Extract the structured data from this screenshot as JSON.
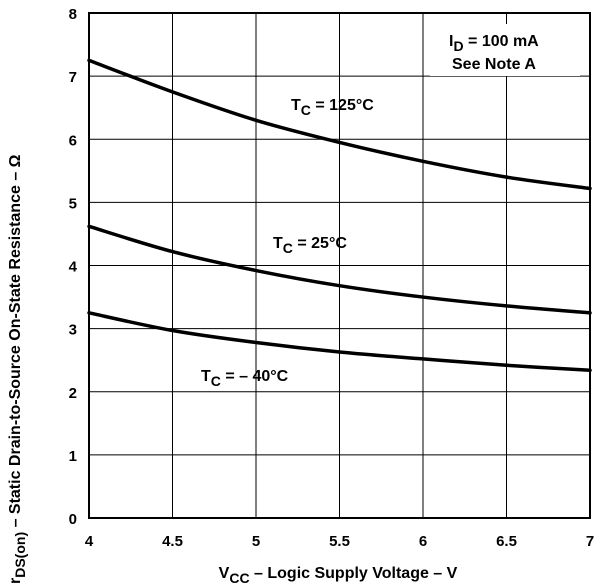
{
  "chart_data": {
    "type": "line",
    "xlabel": {
      "main": "V",
      "sub": "CC",
      "rest": " – Logic Supply Voltage – V"
    },
    "ylabel": {
      "main": "r",
      "sub": "DS(on)",
      "rest": " – Static Drain-to-Source On-State Resistance – Ω"
    },
    "xlim": [
      4,
      7
    ],
    "ylim": [
      0,
      8
    ],
    "x_ticks": [
      "4",
      "4.5",
      "5",
      "5.5",
      "6",
      "6.5",
      "7"
    ],
    "y_ticks": [
      "0",
      "1",
      "2",
      "3",
      "4",
      "5",
      "6",
      "7",
      "8"
    ],
    "grid": true,
    "annotations": [
      {
        "main": "I",
        "sub": "D",
        "rest": " = 100 mA"
      },
      {
        "main": "See Note A",
        "sub": "",
        "rest": ""
      }
    ],
    "series": [
      {
        "name": {
          "main": "T",
          "sub": "C",
          "rest": " = 125°C"
        },
        "x": [
          4,
          4.5,
          5,
          5.5,
          6,
          6.5,
          7
        ],
        "y": [
          7.25,
          6.75,
          6.3,
          5.95,
          5.65,
          5.4,
          5.22
        ]
      },
      {
        "name": {
          "main": "T",
          "sub": "C",
          "rest": " = 25°C"
        },
        "x": [
          4,
          4.5,
          5,
          5.5,
          6,
          6.5,
          7
        ],
        "y": [
          4.62,
          4.22,
          3.92,
          3.68,
          3.5,
          3.36,
          3.25
        ]
      },
      {
        "name": {
          "main": "T",
          "sub": "C",
          "rest": " = – 40°C"
        },
        "x": [
          4,
          4.5,
          5,
          5.5,
          6,
          6.5,
          7
        ],
        "y": [
          3.25,
          2.97,
          2.78,
          2.63,
          2.52,
          2.42,
          2.34
        ]
      }
    ]
  }
}
